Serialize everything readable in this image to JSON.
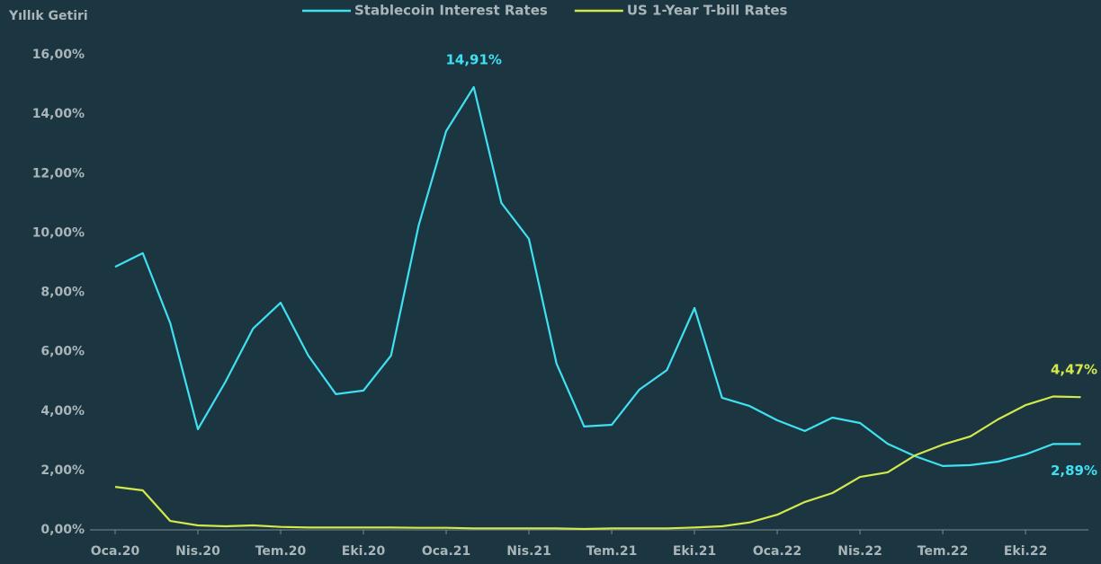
{
  "chart_data": {
    "type": "line",
    "y_label": "Yıllık Getiri",
    "categories": [
      "Oca.20",
      null,
      null,
      "Nis.20",
      null,
      null,
      "Tem.20",
      null,
      null,
      "Eki.20",
      null,
      null,
      "Oca.21",
      null,
      null,
      "Nis.21",
      null,
      null,
      "Tem.21",
      null,
      null,
      "Eki.21",
      null,
      null,
      "Oca.22",
      null,
      null,
      "Nis.22",
      null,
      null,
      "Tem.22",
      null,
      null,
      "Eki.22",
      null,
      null
    ],
    "series": [
      {
        "name": "Stablecoin Interest Rates",
        "color": "#3fe0f2",
        "values": [
          8.86,
          9.32,
          6.96,
          3.39,
          4.99,
          6.78,
          7.65,
          5.87,
          4.57,
          4.69,
          5.87,
          10.25,
          13.43,
          14.91,
          11.01,
          9.8,
          5.6,
          3.48,
          3.54,
          4.72,
          5.38,
          7.47,
          4.45,
          4.17,
          3.69,
          3.33,
          3.78,
          3.6,
          2.9,
          2.48,
          2.15,
          2.18,
          2.3,
          2.54,
          2.89,
          2.89
        ],
        "value_labels": [
          null,
          null,
          null,
          null,
          null,
          null,
          null,
          null,
          null,
          null,
          null,
          null,
          null,
          "14,91%",
          null,
          null,
          null,
          null,
          null,
          null,
          null,
          null,
          null,
          null,
          null,
          null,
          null,
          null,
          null,
          null,
          null,
          null,
          null,
          null,
          null,
          "2,89%"
        ]
      },
      {
        "name": "US 1-Year T-bill Rates",
        "color": "#d3e84b",
        "values": [
          1.45,
          1.33,
          0.3,
          0.15,
          0.12,
          0.15,
          0.1,
          0.08,
          0.08,
          0.08,
          0.08,
          0.07,
          0.07,
          0.05,
          0.05,
          0.05,
          0.05,
          0.03,
          0.05,
          0.05,
          0.05,
          0.08,
          0.12,
          0.25,
          0.51,
          0.94,
          1.24,
          1.78,
          1.94,
          2.51,
          2.87,
          3.15,
          3.72,
          4.2,
          4.49,
          4.47
        ],
        "value_labels": [
          null,
          null,
          null,
          null,
          null,
          null,
          null,
          null,
          null,
          null,
          null,
          null,
          null,
          null,
          null,
          null,
          null,
          null,
          null,
          null,
          null,
          null,
          null,
          null,
          null,
          null,
          null,
          null,
          null,
          null,
          null,
          null,
          null,
          null,
          null,
          "4,47%"
        ]
      }
    ],
    "ylim": [
      0,
      16
    ],
    "yticks": [
      {
        "value": 0,
        "label": "0,00%"
      },
      {
        "value": 2,
        "label": "2,00%"
      },
      {
        "value": 4,
        "label": "4,00%"
      },
      {
        "value": 6,
        "label": "6,00%"
      },
      {
        "value": 8,
        "label": "8,00%"
      },
      {
        "value": 10,
        "label": "10,00%"
      },
      {
        "value": 12,
        "label": "12,00%"
      },
      {
        "value": 14,
        "label": "14,00%"
      },
      {
        "value": 16,
        "label": "16,00%"
      }
    ],
    "grid": false
  }
}
